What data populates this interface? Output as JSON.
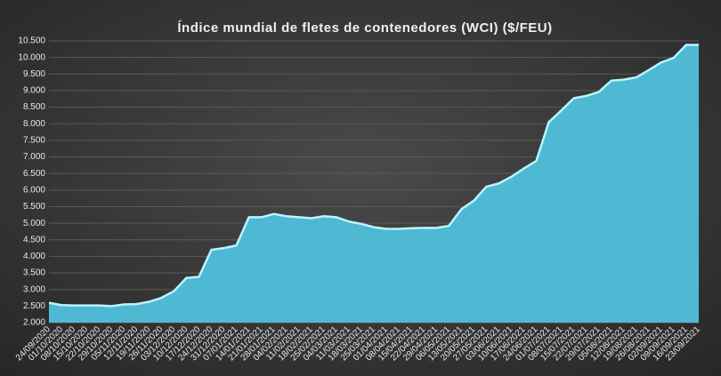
{
  "chart_data": {
    "type": "area",
    "title": "Índice mundial de fletes de contenedores (WCI) ($/FEU)",
    "categories": [
      "24/09/2020",
      "01/10/2020",
      "08/10/2020",
      "15/10/2020",
      "22/10/2020",
      "29/10/2020",
      "05/11/2020",
      "12/11/2020",
      "19/11/2020",
      "26/11/2020",
      "03/12/2020",
      "10/12/2020",
      "17/12/2020",
      "24/12/2020",
      "31/12/2020",
      "07/01/2021",
      "14/01/2021",
      "21/01/2021",
      "28/01/2021",
      "04/02/2021",
      "11/02/2021",
      "18/02/2021",
      "25/02/2021",
      "04/03/2021",
      "11/03/2021",
      "18/03/2021",
      "25/03/2021",
      "01/04/2021",
      "08/04/2021",
      "15/04/2021",
      "22/04/2021",
      "29/04/2021",
      "06/05/2021",
      "13/05/2021",
      "20/05/2021",
      "27/05/2021",
      "03/06/2021",
      "10/06/2021",
      "17/06/2021",
      "24/06/2021",
      "01/07/2021",
      "08/07/2021",
      "15/07/2021",
      "22/07/2021",
      "29/07/2021",
      "05/08/2021",
      "12/08/2021",
      "19/08/2021",
      "26/08/2021",
      "02/09/2021",
      "09/09/2021",
      "16/09/2021",
      "23/09/2021"
    ],
    "values": [
      2600,
      2530,
      2520,
      2520,
      2520,
      2500,
      2550,
      2560,
      2630,
      2750,
      2950,
      3350,
      3380,
      4200,
      4250,
      4330,
      5180,
      5180,
      5280,
      5210,
      5180,
      5150,
      5210,
      5180,
      5050,
      4980,
      4880,
      4830,
      4830,
      4850,
      4860,
      4860,
      4920,
      5420,
      5680,
      6100,
      6200,
      6400,
      6650,
      6880,
      8050,
      8400,
      8770,
      8840,
      8960,
      9300,
      9330,
      9400,
      9620,
      9850,
      9990,
      10380,
      10380
    ],
    "color": "#4fb8d3",
    "line_color": "#b8f4ff",
    "ylim": [
      2000,
      10500
    ],
    "yticks": [
      {
        "value": 2000,
        "label": "2.000"
      },
      {
        "value": 2500,
        "label": "2.500"
      },
      {
        "value": 3000,
        "label": "3.000"
      },
      {
        "value": 3500,
        "label": "3.500"
      },
      {
        "value": 4000,
        "label": "4.000"
      },
      {
        "value": 4500,
        "label": "4.500"
      },
      {
        "value": 5000,
        "label": "5.000"
      },
      {
        "value": 5500,
        "label": "5.500"
      },
      {
        "value": 6000,
        "label": "6.000"
      },
      {
        "value": 6500,
        "label": "6.500"
      },
      {
        "value": 7000,
        "label": "7.000"
      },
      {
        "value": 7500,
        "label": "7.500"
      },
      {
        "value": 8000,
        "label": "8.000"
      },
      {
        "value": 8500,
        "label": "8.500"
      },
      {
        "value": 9000,
        "label": "9.000"
      },
      {
        "value": 9500,
        "label": "9.500"
      },
      {
        "value": 10000,
        "label": "10.000"
      },
      {
        "value": 10500,
        "label": "10.500"
      }
    ],
    "grid": true
  }
}
